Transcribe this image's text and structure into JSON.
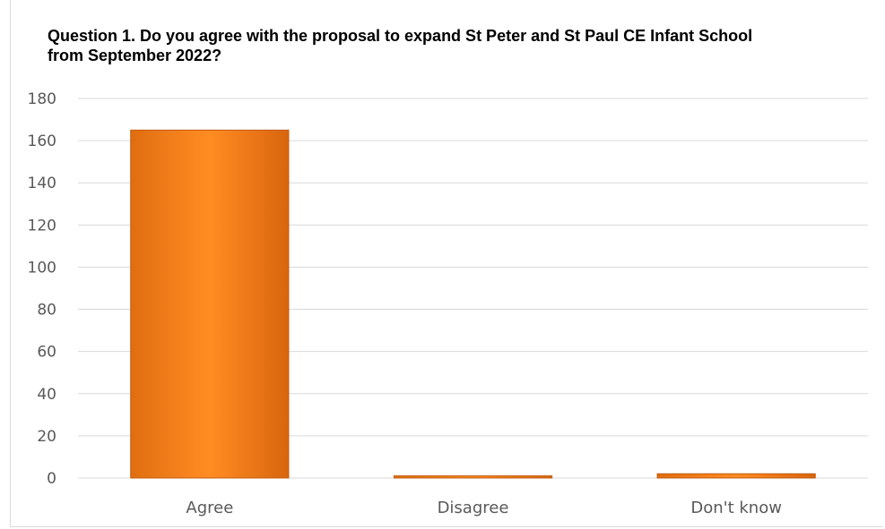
{
  "chart_data": {
    "type": "bar",
    "title": "Question 1. Do you agree with the proposal to expand St Peter and St Paul CE Infant School from September 2022?",
    "xlabel": "",
    "ylabel": "",
    "categories": [
      "Agree",
      "Disagree",
      "Don't know"
    ],
    "values": [
      165,
      1,
      2
    ],
    "ylim": [
      0,
      180
    ],
    "yticks": [
      0,
      20,
      40,
      60,
      80,
      100,
      120,
      140,
      160,
      180
    ],
    "grid": true,
    "legend": "none",
    "colors": {
      "bar": "#F28A1D",
      "bar_dark": "#C35A0C",
      "grid": "#d9d9d9",
      "axis_text": "#595959"
    }
  }
}
